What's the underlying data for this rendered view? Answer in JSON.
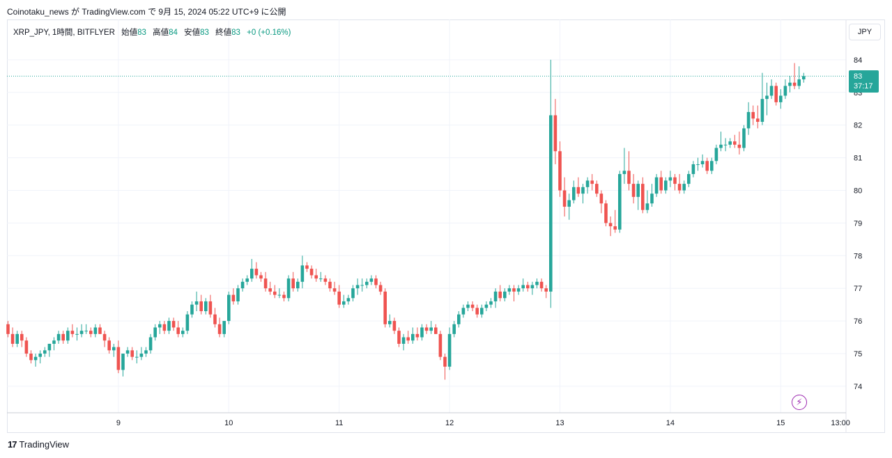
{
  "publish_line": "Coinotaku_news が TradingView.com で 9月 15, 2024 05:22 UTC+9 に公開",
  "legend": {
    "symbol": "XRP_JPY, 1時間, BITFLYER",
    "open_label": "始値",
    "open": "83",
    "high_label": "高値",
    "high": "84",
    "low_label": "安値",
    "low": "83",
    "close_label": "終値",
    "close": "83",
    "change": "+0 (+0.16%)"
  },
  "currency": "JPY",
  "last_price": {
    "value": "83",
    "countdown": "37:17"
  },
  "brand": "TradingView",
  "colors": {
    "up": "#26a69a",
    "down": "#ef5350",
    "grid": "#f0f3fa",
    "axis_text": "#131722",
    "current_line": "#26a69a",
    "alert": "#9c27b0"
  },
  "icons": [
    "tradingview-logo-icon",
    "lightning-alert-icon"
  ],
  "chart_data": {
    "type": "candlestick",
    "title": "XRP_JPY, 1時間, BITFLYER",
    "interval": "1h",
    "ylim": [
      73.2,
      84.5
    ],
    "y_ticks": [
      74,
      75,
      76,
      77,
      78,
      79,
      80,
      81,
      82,
      83,
      84
    ],
    "x_labels": [
      {
        "label": "9",
        "x": 24
      },
      {
        "label": "10",
        "x": 48
      },
      {
        "label": "11",
        "x": 72
      },
      {
        "label": "12",
        "x": 96
      },
      {
        "label": "13",
        "x": 120
      },
      {
        "label": "14",
        "x": 144
      },
      {
        "label": "15",
        "x": 168
      },
      {
        "label": "13:00",
        "x": 181
      }
    ],
    "current_price": 83.5,
    "current_price_label": "83",
    "grid": true,
    "candles": [
      [
        75.9,
        76.0,
        75.5,
        75.6
      ],
      [
        75.6,
        75.8,
        75.2,
        75.3
      ],
      [
        75.3,
        75.7,
        75.2,
        75.6
      ],
      [
        75.6,
        75.7,
        75.2,
        75.4
      ],
      [
        75.4,
        75.5,
        74.9,
        75.0
      ],
      [
        75.0,
        75.1,
        74.7,
        74.8
      ],
      [
        74.8,
        75.0,
        74.6,
        74.9
      ],
      [
        74.9,
        75.1,
        74.7,
        75.0
      ],
      [
        75.0,
        75.2,
        74.9,
        75.1
      ],
      [
        75.1,
        75.3,
        74.9,
        75.3
      ],
      [
        75.3,
        75.5,
        75.1,
        75.4
      ],
      [
        75.4,
        75.7,
        75.3,
        75.6
      ],
      [
        75.6,
        75.7,
        75.3,
        75.4
      ],
      [
        75.4,
        75.8,
        75.3,
        75.7
      ],
      [
        75.7,
        75.9,
        75.5,
        75.6
      ],
      [
        75.6,
        75.8,
        75.4,
        75.6
      ],
      [
        75.6,
        75.9,
        75.5,
        75.7
      ],
      [
        75.7,
        75.9,
        75.6,
        75.7
      ],
      [
        75.7,
        75.8,
        75.5,
        75.6
      ],
      [
        75.6,
        75.9,
        75.5,
        75.8
      ],
      [
        75.8,
        75.9,
        75.6,
        75.6
      ],
      [
        75.6,
        75.7,
        75.2,
        75.4
      ],
      [
        75.4,
        75.5,
        75.0,
        75.1
      ],
      [
        75.1,
        75.3,
        74.9,
        75.2
      ],
      [
        75.2,
        75.4,
        74.4,
        74.5
      ],
      [
        74.5,
        75.0,
        74.3,
        75.0
      ],
      [
        75.0,
        75.2,
        74.9,
        75.1
      ],
      [
        75.1,
        75.2,
        74.8,
        74.9
      ],
      [
        74.9,
        75.1,
        74.7,
        74.9
      ],
      [
        74.9,
        75.2,
        74.8,
        75.0
      ],
      [
        75.0,
        75.2,
        74.9,
        75.1
      ],
      [
        75.1,
        75.6,
        75.0,
        75.5
      ],
      [
        75.5,
        75.9,
        75.4,
        75.8
      ],
      [
        75.8,
        76.0,
        75.6,
        75.9
      ],
      [
        75.9,
        76.0,
        75.6,
        75.7
      ],
      [
        75.7,
        76.1,
        75.6,
        76.0
      ],
      [
        76.0,
        76.1,
        75.7,
        75.8
      ],
      [
        75.8,
        76.0,
        75.5,
        75.6
      ],
      [
        75.6,
        75.8,
        75.5,
        75.7
      ],
      [
        75.7,
        76.3,
        75.6,
        76.2
      ],
      [
        76.2,
        76.6,
        76.1,
        76.5
      ],
      [
        76.5,
        76.9,
        76.3,
        76.6
      ],
      [
        76.6,
        76.8,
        76.2,
        76.3
      ],
      [
        76.3,
        76.7,
        76.2,
        76.6
      ],
      [
        76.6,
        76.8,
        76.1,
        76.2
      ],
      [
        76.2,
        76.4,
        75.8,
        75.9
      ],
      [
        75.9,
        76.1,
        75.5,
        75.6
      ],
      [
        75.6,
        76.0,
        75.5,
        76.0
      ],
      [
        76.0,
        76.9,
        75.9,
        76.8
      ],
      [
        76.8,
        77.0,
        76.5,
        76.6
      ],
      [
        76.6,
        77.1,
        76.5,
        77.0
      ],
      [
        77.0,
        77.3,
        76.9,
        77.2
      ],
      [
        77.2,
        77.4,
        77.1,
        77.3
      ],
      [
        77.3,
        77.9,
        77.2,
        77.6
      ],
      [
        77.6,
        77.8,
        77.3,
        77.4
      ],
      [
        77.4,
        77.5,
        77.2,
        77.3
      ],
      [
        77.3,
        77.5,
        76.9,
        77.0
      ],
      [
        77.0,
        77.2,
        76.8,
        76.9
      ],
      [
        76.9,
        77.1,
        76.7,
        76.8
      ],
      [
        76.8,
        77.0,
        76.7,
        76.8
      ],
      [
        76.8,
        76.9,
        76.6,
        76.7
      ],
      [
        76.7,
        77.4,
        76.6,
        77.3
      ],
      [
        77.3,
        77.5,
        76.9,
        77.0
      ],
      [
        77.0,
        77.3,
        76.9,
        77.2
      ],
      [
        77.2,
        78.0,
        77.0,
        77.7
      ],
      [
        77.7,
        77.8,
        77.5,
        77.6
      ],
      [
        77.6,
        77.7,
        77.3,
        77.4
      ],
      [
        77.4,
        77.6,
        77.2,
        77.3
      ],
      [
        77.3,
        77.5,
        77.2,
        77.3
      ],
      [
        77.3,
        77.4,
        77.1,
        77.2
      ],
      [
        77.2,
        77.3,
        76.9,
        77.0
      ],
      [
        77.0,
        77.2,
        76.8,
        76.9
      ],
      [
        76.9,
        77.1,
        76.4,
        76.5
      ],
      [
        76.5,
        76.8,
        76.4,
        76.6
      ],
      [
        76.6,
        76.8,
        76.5,
        76.7
      ],
      [
        76.7,
        77.1,
        76.6,
        77.0
      ],
      [
        77.0,
        77.3,
        76.8,
        77.1
      ],
      [
        77.1,
        77.3,
        76.9,
        77.1
      ],
      [
        77.1,
        77.3,
        77.0,
        77.2
      ],
      [
        77.2,
        77.4,
        77.1,
        77.3
      ],
      [
        77.3,
        77.4,
        77.0,
        77.1
      ],
      [
        77.1,
        77.2,
        76.8,
        76.9
      ],
      [
        76.9,
        77.0,
        75.8,
        75.9
      ],
      [
        75.9,
        76.2,
        75.8,
        76.0
      ],
      [
        76.0,
        76.1,
        75.6,
        75.7
      ],
      [
        75.7,
        75.8,
        75.2,
        75.3
      ],
      [
        75.3,
        75.6,
        75.1,
        75.5
      ],
      [
        75.5,
        75.7,
        75.3,
        75.4
      ],
      [
        75.4,
        75.8,
        75.3,
        75.6
      ],
      [
        75.6,
        75.8,
        75.4,
        75.5
      ],
      [
        75.5,
        75.9,
        75.4,
        75.8
      ],
      [
        75.8,
        75.9,
        75.6,
        75.7
      ],
      [
        75.7,
        76.0,
        75.6,
        75.8
      ],
      [
        75.8,
        75.9,
        75.6,
        75.6
      ],
      [
        75.6,
        75.7,
        74.8,
        74.9
      ],
      [
        74.9,
        75.0,
        74.2,
        74.6
      ],
      [
        74.6,
        75.8,
        74.5,
        75.6
      ],
      [
        75.6,
        76.0,
        75.5,
        75.9
      ],
      [
        75.9,
        76.3,
        75.8,
        76.2
      ],
      [
        76.2,
        76.5,
        76.1,
        76.4
      ],
      [
        76.4,
        76.6,
        76.3,
        76.5
      ],
      [
        76.5,
        76.6,
        76.3,
        76.4
      ],
      [
        76.4,
        76.5,
        76.1,
        76.2
      ],
      [
        76.2,
        76.5,
        76.1,
        76.4
      ],
      [
        76.4,
        76.6,
        76.3,
        76.5
      ],
      [
        76.5,
        76.7,
        76.4,
        76.6
      ],
      [
        76.6,
        77.0,
        76.4,
        76.9
      ],
      [
        76.9,
        77.1,
        76.6,
        76.7
      ],
      [
        76.7,
        77.0,
        76.6,
        76.9
      ],
      [
        76.9,
        77.1,
        76.8,
        77.0
      ],
      [
        77.0,
        77.1,
        76.6,
        76.9
      ],
      [
        76.9,
        77.1,
        76.8,
        77.0
      ],
      [
        77.0,
        77.3,
        76.9,
        77.1
      ],
      [
        77.1,
        77.2,
        76.9,
        77.0
      ],
      [
        77.0,
        77.2,
        76.8,
        77.1
      ],
      [
        77.1,
        77.3,
        77.0,
        77.2
      ],
      [
        77.2,
        77.3,
        76.9,
        77.0
      ],
      [
        77.0,
        77.1,
        76.7,
        76.9
      ],
      [
        76.9,
        84.0,
        76.4,
        82.3
      ],
      [
        82.3,
        82.8,
        80.8,
        81.2
      ],
      [
        81.2,
        81.5,
        79.8,
        80.0
      ],
      [
        80.0,
        80.4,
        79.2,
        79.5
      ],
      [
        79.5,
        79.9,
        79.1,
        79.7
      ],
      [
        79.7,
        80.3,
        79.6,
        80.1
      ],
      [
        80.1,
        80.4,
        79.8,
        79.9
      ],
      [
        79.9,
        80.2,
        79.6,
        80.1
      ],
      [
        80.1,
        80.4,
        79.9,
        80.3
      ],
      [
        80.3,
        80.5,
        80.0,
        80.2
      ],
      [
        80.2,
        80.3,
        79.8,
        79.9
      ],
      [
        79.9,
        80.0,
        79.3,
        79.6
      ],
      [
        79.6,
        79.7,
        78.9,
        79.0
      ],
      [
        79.0,
        79.2,
        78.6,
        78.9
      ],
      [
        78.9,
        79.4,
        78.7,
        78.8
      ],
      [
        78.8,
        80.6,
        78.7,
        80.5
      ],
      [
        80.5,
        81.3,
        80.2,
        80.6
      ],
      [
        80.6,
        81.2,
        80.0,
        80.2
      ],
      [
        80.2,
        80.5,
        79.6,
        79.8
      ],
      [
        79.8,
        80.3,
        79.4,
        80.2
      ],
      [
        80.2,
        80.4,
        79.3,
        79.4
      ],
      [
        79.4,
        80.0,
        79.3,
        79.6
      ],
      [
        79.6,
        80.2,
        79.5,
        79.9
      ],
      [
        79.9,
        80.5,
        79.8,
        80.4
      ],
      [
        80.4,
        80.6,
        79.9,
        80.0
      ],
      [
        80.0,
        80.4,
        79.9,
        80.3
      ],
      [
        80.3,
        80.6,
        80.1,
        80.4
      ],
      [
        80.4,
        80.5,
        80.0,
        80.2
      ],
      [
        80.2,
        80.5,
        79.9,
        80.0
      ],
      [
        80.0,
        80.3,
        79.9,
        80.2
      ],
      [
        80.2,
        80.6,
        80.1,
        80.5
      ],
      [
        80.5,
        80.9,
        80.4,
        80.8
      ],
      [
        80.8,
        81.0,
        80.6,
        80.8
      ],
      [
        80.8,
        81.1,
        80.7,
        80.9
      ],
      [
        80.9,
        81.0,
        80.5,
        80.6
      ],
      [
        80.6,
        81.0,
        80.5,
        80.9
      ],
      [
        80.9,
        81.4,
        80.8,
        81.3
      ],
      [
        81.3,
        81.8,
        81.2,
        81.4
      ],
      [
        81.4,
        81.6,
        81.2,
        81.4
      ],
      [
        81.4,
        81.6,
        81.3,
        81.5
      ],
      [
        81.5,
        81.7,
        81.3,
        81.4
      ],
      [
        81.4,
        81.8,
        81.1,
        81.3
      ],
      [
        81.3,
        82.0,
        81.2,
        81.9
      ],
      [
        81.9,
        82.7,
        81.7,
        82.4
      ],
      [
        82.4,
        82.6,
        82.0,
        82.2
      ],
      [
        82.2,
        82.6,
        81.9,
        82.1
      ],
      [
        82.1,
        83.6,
        82.0,
        82.8
      ],
      [
        82.8,
        83.3,
        82.3,
        82.9
      ],
      [
        82.9,
        83.4,
        82.8,
        83.2
      ],
      [
        83.2,
        83.3,
        82.6,
        82.7
      ],
      [
        82.7,
        83.1,
        82.5,
        82.9
      ],
      [
        82.9,
        83.4,
        82.8,
        83.2
      ],
      [
        83.2,
        83.5,
        83.0,
        83.3
      ],
      [
        83.3,
        83.9,
        83.1,
        83.2
      ],
      [
        83.2,
        83.8,
        83.1,
        83.4
      ],
      [
        83.4,
        83.6,
        83.3,
        83.5
      ]
    ]
  }
}
